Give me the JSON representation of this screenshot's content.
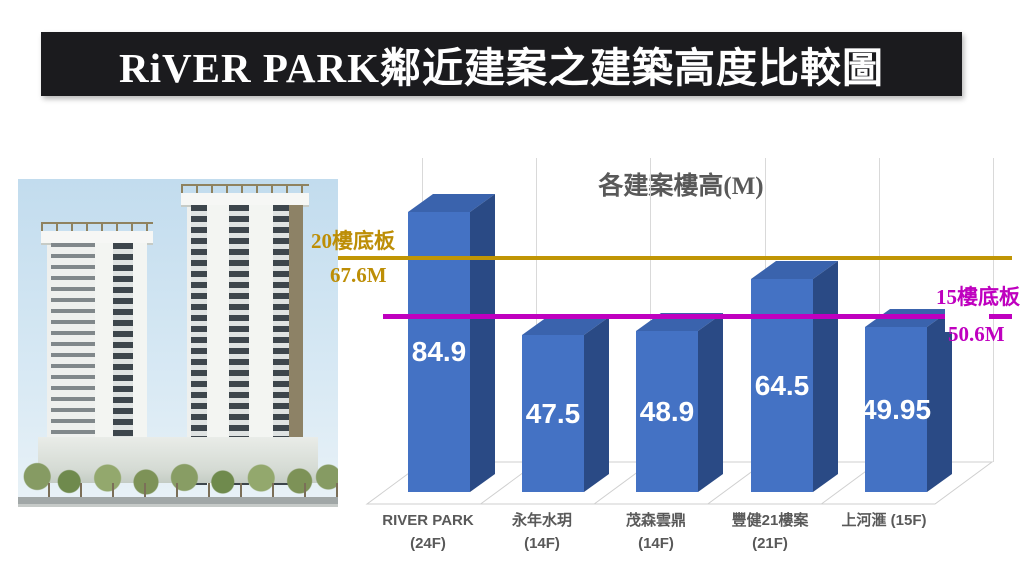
{
  "page": {
    "title": "RiVER PARK鄰近建案之建築高度比較圖"
  },
  "chart_data": {
    "type": "bar",
    "title": "各建案樓高(M)",
    "style": {
      "effect": "3d",
      "background": "#ffffff",
      "gridline_color": "#d9d9d9"
    },
    "bar_colors": {
      "front": "#4472C4",
      "top": "#3A63AD",
      "side": "#2A4A85"
    },
    "categories": [
      {
        "name": "RIVER PARK",
        "floors": "(24F)"
      },
      {
        "name": "永年水玥",
        "floors": "(14F)"
      },
      {
        "name": "茂森雲鼎",
        "floors": "(14F)"
      },
      {
        "name": "豐健21樓案",
        "floors": "(21F)"
      },
      {
        "name": "上河滙 (15F)",
        "floors": ""
      }
    ],
    "values": [
      84.9,
      47.5,
      48.9,
      64.5,
      49.95
    ],
    "unit": "M",
    "reference_lines": [
      {
        "label": "20樓底板",
        "value": 67.6,
        "value_label": "67.6M",
        "color": "#BD8E06"
      },
      {
        "label": "15樓底板",
        "value": 50.6,
        "value_label": "50.6M",
        "color": "#BF00BF"
      }
    ],
    "legend": "none",
    "value_labels_position": "center"
  }
}
